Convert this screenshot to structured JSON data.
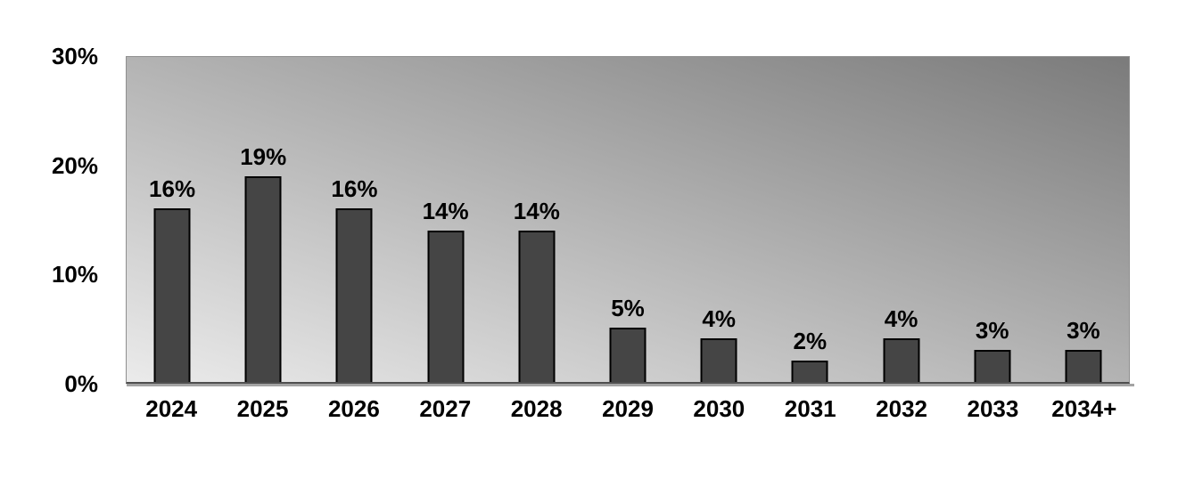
{
  "page": {
    "background": "#ffffff"
  },
  "chart_data": {
    "type": "bar",
    "categories": [
      "2024",
      "2025",
      "2026",
      "2027",
      "2028",
      "2029",
      "2030",
      "2031",
      "2032",
      "2033",
      "2034+"
    ],
    "values": [
      16,
      19,
      16,
      14,
      14,
      5,
      4,
      2,
      4,
      3,
      3
    ],
    "value_labels": [
      "16%",
      "19%",
      "16%",
      "14%",
      "14%",
      "5%",
      "4%",
      "2%",
      "4%",
      "3%",
      "3%"
    ],
    "ytick_labels": [
      "30%",
      "20%",
      "10%",
      "0%"
    ],
    "ytick_values": [
      30,
      20,
      10,
      0
    ],
    "ylim": [
      0,
      30
    ],
    "grid": false,
    "legend": "none",
    "bar_fill": "#454545",
    "bar_border": "#000000",
    "plot_gradient_bottom_left": "#ebebeb",
    "plot_gradient_top_right": "#7b7b7b",
    "axis_line_color": "#4f4f4f",
    "axis_shadow_color": "#a3a3a3",
    "label_color": "#000000"
  }
}
